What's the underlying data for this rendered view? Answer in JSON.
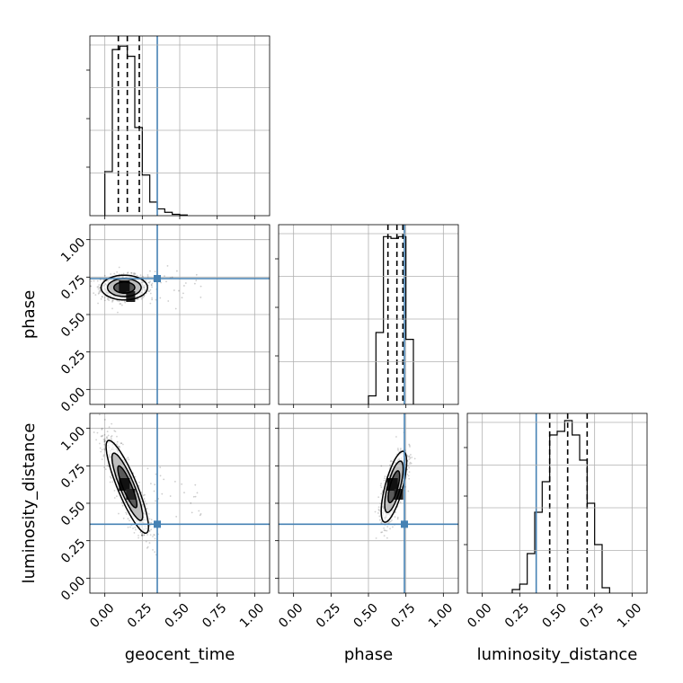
{
  "chart_data": {
    "type": "corner",
    "parameters": [
      "geocent_time",
      "phase",
      "luminosity_distance"
    ],
    "axis_range": [
      -0.1,
      1.1
    ],
    "ticks": [
      0.0,
      0.25,
      0.5,
      0.75,
      1.0
    ],
    "tick_labels": [
      "0.00",
      "0.25",
      "0.50",
      "0.75",
      "1.00"
    ],
    "grid": true,
    "truths": {
      "color": "#4682b4",
      "geocent_time": 0.35,
      "phase": 0.74,
      "luminosity_distance": 0.36
    },
    "histograms": {
      "geocent_time": {
        "bin_edges": [
          0.0,
          0.05,
          0.1,
          0.15,
          0.2,
          0.25,
          0.3,
          0.35,
          0.4,
          0.45,
          0.5,
          0.55
        ],
        "values": [
          0.13,
          0.49,
          0.5,
          0.47,
          0.26,
          0.12,
          0.04,
          0.02,
          0.01,
          0.004,
          0.002
        ],
        "quantiles": [
          0.09,
          0.15,
          0.23
        ],
        "ylim": [
          0,
          0.53
        ]
      },
      "phase": {
        "bin_edges": [
          0.5,
          0.55,
          0.6,
          0.65,
          0.7,
          0.75,
          0.8
        ],
        "values": [
          0.05,
          0.42,
          0.98,
          0.97,
          0.98,
          0.38
        ],
        "quantiles": [
          0.63,
          0.69,
          0.73
        ],
        "ylim": [
          0,
          1.05
        ]
      },
      "luminosity_distance": {
        "bin_edges": [
          0.2,
          0.25,
          0.3,
          0.35,
          0.4,
          0.45,
          0.5,
          0.55,
          0.6,
          0.65,
          0.7,
          0.75,
          0.8,
          0.85
        ],
        "values": [
          0.02,
          0.05,
          0.22,
          0.45,
          0.62,
          0.88,
          0.9,
          0.96,
          0.88,
          0.74,
          0.5,
          0.27,
          0.03
        ],
        "quantiles": [
          0.45,
          0.57,
          0.7
        ],
        "ylim": [
          0,
          1.0
        ]
      }
    },
    "pairs": [
      {
        "x": "geocent_time",
        "y": "phase",
        "center": [
          0.13,
          0.68
        ],
        "cov": [
          [
            0.006,
            0.0
          ],
          [
            0.0,
            0.0017
          ]
        ],
        "density_peak": [
          0.13,
          0.68
        ]
      },
      {
        "x": "geocent_time",
        "y": "luminosity_distance",
        "center": [
          0.15,
          0.61
        ],
        "cov": [
          [
            0.005,
            -0.0095
          ],
          [
            -0.0095,
            0.024
          ]
        ],
        "density_peak": [
          0.13,
          0.62
        ]
      },
      {
        "x": "phase",
        "y": "luminosity_distance",
        "center": [
          0.67,
          0.61
        ],
        "cov": [
          [
            0.0018,
            0.0035
          ],
          [
            0.0035,
            0.014
          ]
        ],
        "density_peak": [
          0.66,
          0.62
        ]
      }
    ]
  }
}
